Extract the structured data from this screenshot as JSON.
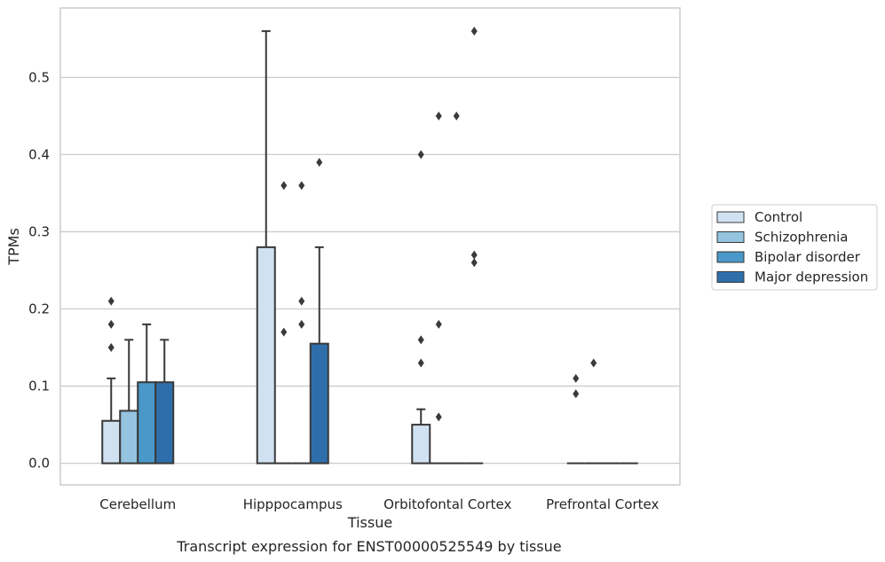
{
  "chart_data": {
    "type": "bar",
    "caption": "Transcript expression for ENST00000525549 by tissue",
    "xlabel": "Tissue",
    "ylabel": "TPMs",
    "ylim": [
      -0.028,
      0.59
    ],
    "yticks": [
      "0.0",
      "0.1",
      "0.2",
      "0.3",
      "0.4",
      "0.5"
    ],
    "ytick_values": [
      0.0,
      0.1,
      0.2,
      0.3,
      0.4,
      0.5
    ],
    "grid": "horizontal",
    "legend_position": "right",
    "categories": [
      "Cerebellum",
      "Hipppocampus",
      "Orbitofontal Cortex",
      "Prefrontal Cortex"
    ],
    "series": [
      {
        "name": "Control",
        "color": "#d0e1f2",
        "values": [
          0.055,
          0.28,
          0.05,
          0.0
        ],
        "error_upper": [
          0.11,
          0.56,
          0.07,
          0.0
        ],
        "outliers": [
          [
            0.15,
            0.18,
            0.21
          ],
          [],
          [
            0.13,
            0.16,
            0.4
          ],
          [
            0.09,
            0.11
          ]
        ]
      },
      {
        "name": "Schizophrenia",
        "color": "#94c4df",
        "values": [
          0.068,
          0.0,
          0.0,
          0.0
        ],
        "error_upper": [
          0.16,
          0.0,
          0.0,
          0.0
        ],
        "outliers": [
          [],
          [
            0.17,
            0.36
          ],
          [
            0.06,
            0.18,
            0.45
          ],
          [
            0.13
          ]
        ]
      },
      {
        "name": "Bipolar disorder",
        "color": "#4a98c9",
        "values": [
          0.105,
          0.0,
          0.0,
          0.0
        ],
        "error_upper": [
          0.18,
          0.0,
          0.0,
          0.0
        ],
        "outliers": [
          [],
          [
            0.18,
            0.21,
            0.36
          ],
          [
            0.45
          ],
          []
        ]
      },
      {
        "name": "Major depression",
        "color": "#2e6fab",
        "values": [
          0.105,
          0.155,
          0.0,
          0.0
        ],
        "error_upper": [
          0.16,
          0.28,
          0.0,
          0.0
        ],
        "outliers": [
          [],
          [
            0.39
          ],
          [
            0.26,
            0.27,
            0.56
          ],
          []
        ]
      }
    ]
  }
}
